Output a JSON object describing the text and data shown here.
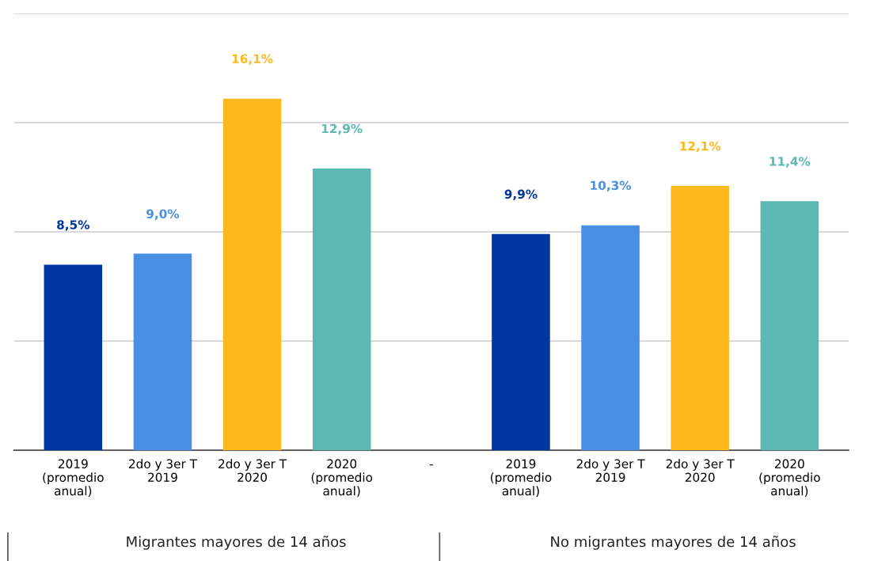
{
  "chart_data": {
    "type": "bar",
    "categories": [
      "2019\n(promedio\nanual)",
      "2do y 3er T\n2019",
      "2do y 3er T\n2020",
      "2020\n(promedio\nanual)",
      "-",
      "2019\n(promedio\nanual)",
      "2do y 3er T\n2019",
      "2do y 3er T\n2020",
      "2020\n(promedio\nanual)"
    ],
    "values": [
      8.5,
      9.0,
      16.1,
      12.9,
      null,
      9.9,
      10.3,
      12.1,
      11.4
    ],
    "value_labels": [
      "8,5%",
      "9,0%",
      "16,1%",
      "12,9%",
      null,
      "9,9%",
      "10,3%",
      "12,1%",
      "11,4%"
    ],
    "colors": [
      "#0036a3",
      "#4a90e2",
      "#fdb81e",
      "#5cb8b2",
      "#999999",
      "#0036a3",
      "#4a90e2",
      "#fdb81e",
      "#5cb8b2"
    ],
    "ylim": [
      0,
      20
    ],
    "yticks": [
      {
        "value": 0,
        "label": null
      },
      {
        "value": 5,
        "label": null
      },
      {
        "value": 10,
        "label": null
      },
      {
        "value": 15,
        "label": null
      },
      {
        "value": 20,
        "label": null
      }
    ],
    "tick_labels": "x",
    "grid": "y",
    "legend": false,
    "annotations": [
      "Migrantes mayores de 14 años",
      "No migrantes mayores de 14 años"
    ]
  }
}
